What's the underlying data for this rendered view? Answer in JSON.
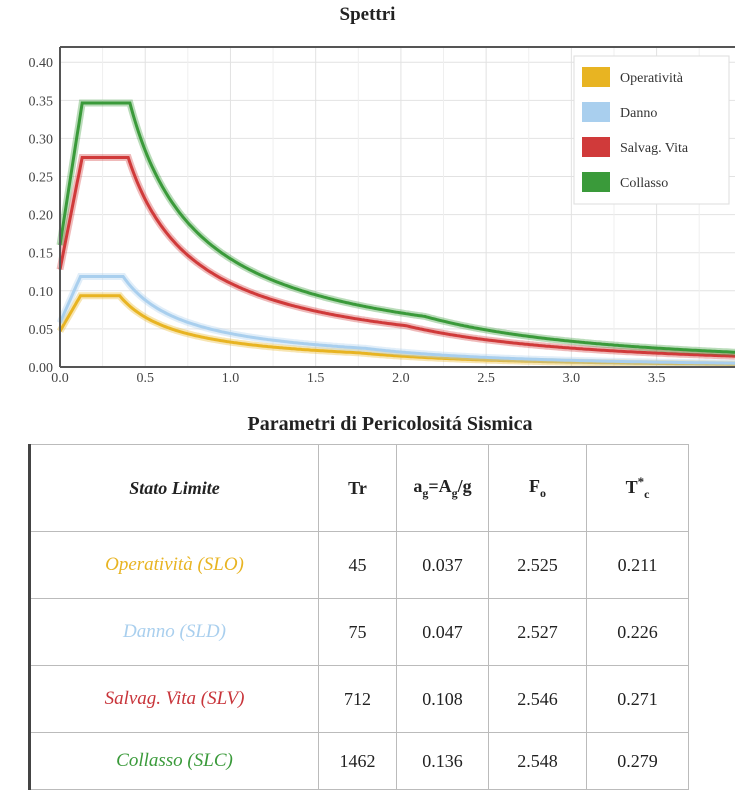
{
  "chart_title": "Spettri",
  "table_title": "Parametri di Pericolositá Sismica",
  "chart_data": {
    "type": "line",
    "title": "Spettri",
    "xlim": [
      0,
      4.0
    ],
    "ylim": [
      0,
      0.42
    ],
    "x_ticks": [
      0.0,
      0.5,
      1.0,
      1.5,
      2.0,
      2.5,
      3.0,
      3.5
    ],
    "x_tick_labels": [
      "0.0",
      "0.5",
      "1.0",
      "1.5",
      "2.0",
      "2.5",
      "3.0",
      "3.5"
    ],
    "y_ticks": [
      0.0,
      0.05,
      0.1,
      0.15,
      0.2,
      0.25,
      0.3,
      0.35,
      0.4
    ],
    "y_tick_labels": [
      "0.00",
      "0.05",
      "0.10",
      "0.15",
      "0.20",
      "0.25",
      "0.30",
      "0.35",
      "0.40"
    ],
    "grid": true,
    "legend_position": "top-right",
    "series": [
      {
        "name": "Operatività",
        "color": "#e8b422",
        "ag": 0.037,
        "F0": 2.525,
        "Tb": 0.12,
        "Tc": 0.35,
        "Td": 1.75,
        "y0": 0.047
      },
      {
        "name": "Danno",
        "color": "#a9cfee",
        "ag": 0.047,
        "F0": 2.527,
        "Tb": 0.12,
        "Tc": 0.37,
        "Td": 1.79,
        "y0": 0.058
      },
      {
        "name": "Salvag. Vita",
        "color": "#d03a3a",
        "ag": 0.108,
        "F0": 2.546,
        "Tb": 0.13,
        "Tc": 0.4,
        "Td": 2.03,
        "y0": 0.128
      },
      {
        "name": "Collasso",
        "color": "#3a9a3a",
        "ag": 0.136,
        "F0": 2.548,
        "Tb": 0.13,
        "Tc": 0.41,
        "Td": 2.14,
        "y0": 0.16
      }
    ]
  },
  "table": {
    "headers": {
      "stato": "Stato Limite",
      "tr": "Tr",
      "ag_a": "a",
      "ag_sub1": "g",
      "ag_b": "=A",
      "ag_sub2": "g",
      "ag_c": "/g",
      "fo": "F",
      "fo_sub": "o",
      "tc": "T",
      "tc_sup": "*",
      "tc_sub": "c"
    },
    "rows": [
      {
        "label": "Operatività (SLO)",
        "color": "#e8b422",
        "tr": "45",
        "ag": "0.037",
        "fo": "2.525",
        "tc": "0.211"
      },
      {
        "label": "Danno (SLD)",
        "color": "#a9cfee",
        "tr": "75",
        "ag": "0.047",
        "fo": "2.527",
        "tc": "0.226"
      },
      {
        "label": "Salvag. Vita (SLV)",
        "color": "#c8343a",
        "tr": "712",
        "ag": "0.108",
        "fo": "2.546",
        "tc": "0.271"
      },
      {
        "label": "Collasso (SLC)",
        "color": "#3a9a3a",
        "tr": "1462",
        "ag": "0.136",
        "fo": "2.548",
        "tc": "0.279"
      }
    ]
  }
}
